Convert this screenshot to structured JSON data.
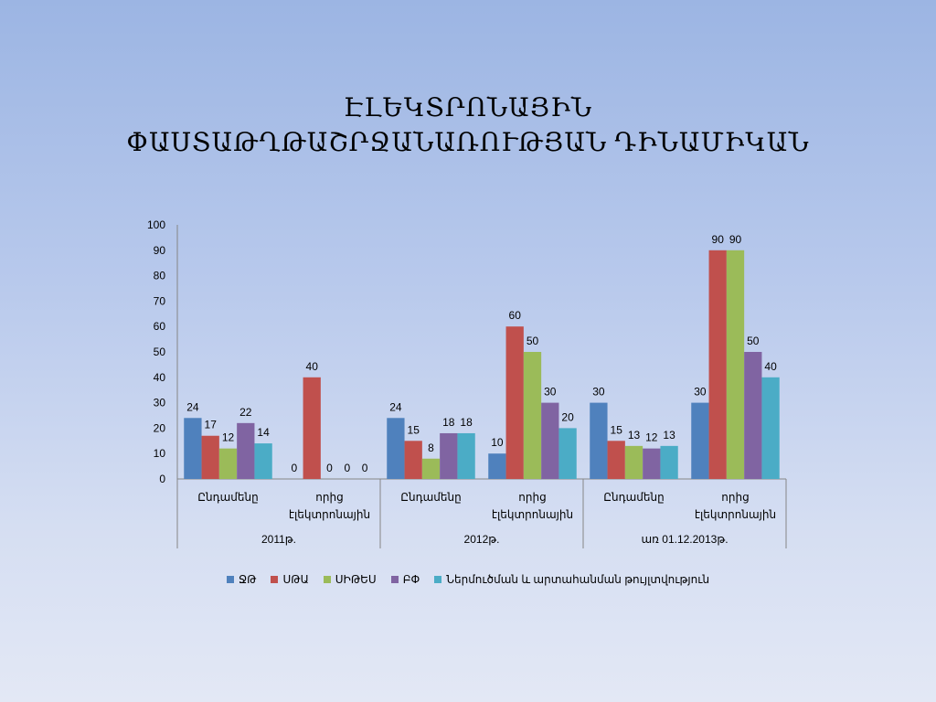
{
  "slide": {
    "title_line1": "ԷԼԵԿՏՐՈՆԱՅԻՆ",
    "title_line2": "ՓԱՍՏԱԹՂԹԱՇՐՋԱՆԱՌՈՒԹՅԱՆ ԴԻՆԱՄԻԿԱՆ"
  },
  "chart_data": {
    "type": "bar",
    "title": "ԷԼԵԿՏՐՈՆԱՅԻՆ ՓԱՍՏԱԹՂԹԱՇՐՋԱՆԱՌՈՒԹՅԱՆ ԴԻՆԱՄԻԿԱՆ",
    "ylim": [
      0,
      100
    ],
    "yticks": [
      0,
      10,
      20,
      30,
      40,
      50,
      60,
      70,
      80,
      90,
      100
    ],
    "grid": false,
    "legend_position": "bottom",
    "groups": [
      {
        "label": "2011թ.",
        "categories": [
          "Ընդամենը",
          "որից էլեկտրոնային"
        ]
      },
      {
        "label": "2012թ.",
        "categories": [
          "Ընդամենը",
          "որից էլեկտրոնային"
        ]
      },
      {
        "label": "առ 01.12.2013թ.",
        "categories": [
          "Ընդամենը",
          "որից էլեկտրոնային"
        ]
      }
    ],
    "series": [
      {
        "name": "ՋԹ",
        "color": "#4f81bd",
        "values": [
          24,
          0,
          24,
          10,
          30,
          30
        ]
      },
      {
        "name": "ՍԹԱ",
        "color": "#c0504d",
        "values": [
          17,
          40,
          15,
          60,
          15,
          90
        ]
      },
      {
        "name": "ՍԻԹԵՍ",
        "color": "#9bbb59",
        "values": [
          12,
          0,
          8,
          50,
          13,
          90
        ]
      },
      {
        "name": "ԲՓ",
        "color": "#8064a2",
        "values": [
          22,
          0,
          18,
          30,
          12,
          50
        ]
      },
      {
        "name": "Ներմուծման և արտահանման թույլտվություն",
        "color": "#4bacc6",
        "values": [
          14,
          0,
          18,
          20,
          13,
          40
        ]
      }
    ]
  }
}
